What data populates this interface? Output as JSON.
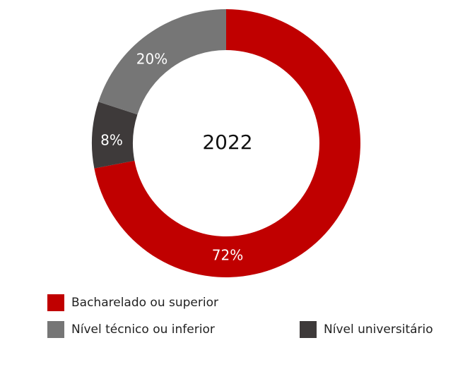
{
  "chart_data": {
    "type": "donut",
    "title": "2022",
    "categories": [
      "Bacharelado ou superior",
      "Nível universitário",
      "Nível técnico ou inferior"
    ],
    "values": [
      72,
      8,
      20
    ],
    "value_labels": [
      "72%",
      "8%",
      "20%"
    ],
    "colors": [
      "#c00000",
      "#3e3a3a",
      "#767676"
    ]
  }
}
